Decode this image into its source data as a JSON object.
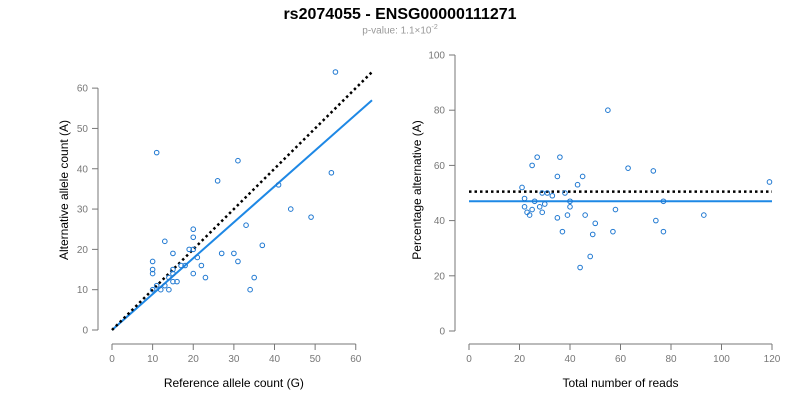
{
  "title": "rs2074055 - ENSG00000111271",
  "subtitle": {
    "prefix": "p-value: 1.1×10",
    "exponent": "-2"
  },
  "colors": {
    "points": "#1f78d1",
    "fit": "#1e88e5",
    "reference": "#000000",
    "axis": "#777777"
  },
  "chart_data": [
    {
      "type": "scatter",
      "xlabel": "Reference allele count (G)",
      "ylabel": "Alternative allele count (A)",
      "xlim": [
        0,
        64
      ],
      "ylim": [
        0,
        64
      ],
      "xticks": [
        0,
        10,
        20,
        30,
        40,
        50,
        60
      ],
      "yticks": [
        0,
        10,
        20,
        30,
        40,
        50,
        60
      ],
      "points": [
        [
          11,
          44
        ],
        [
          31,
          42
        ],
        [
          55,
          64
        ],
        [
          26,
          37
        ],
        [
          41,
          36
        ],
        [
          54,
          39
        ],
        [
          44,
          30
        ],
        [
          49,
          28
        ],
        [
          33,
          26
        ],
        [
          20,
          25
        ],
        [
          20,
          23
        ],
        [
          10,
          17
        ],
        [
          13,
          22
        ],
        [
          10,
          15
        ],
        [
          10,
          14
        ],
        [
          15,
          19
        ],
        [
          19,
          20
        ],
        [
          20,
          20
        ],
        [
          21,
          18
        ],
        [
          17,
          16
        ],
        [
          22,
          16
        ],
        [
          15,
          15
        ],
        [
          15,
          14
        ],
        [
          20,
          14
        ],
        [
          23,
          13
        ],
        [
          27,
          19
        ],
        [
          30,
          19
        ],
        [
          31,
          17
        ],
        [
          37,
          21
        ],
        [
          35,
          13
        ],
        [
          34,
          10
        ],
        [
          16,
          12
        ],
        [
          12,
          10
        ],
        [
          14,
          10
        ],
        [
          13,
          11
        ],
        [
          10,
          10
        ],
        [
          11,
          11
        ],
        [
          15,
          12
        ],
        [
          14,
          13
        ],
        [
          18,
          16
        ]
      ],
      "lines": [
        {
          "role": "fit",
          "from": [
            0,
            0
          ],
          "to": [
            64,
            57
          ]
        },
        {
          "role": "reference",
          "from": [
            0,
            0
          ],
          "to": [
            64,
            64
          ]
        }
      ]
    },
    {
      "type": "scatter",
      "xlabel": "Total number of reads",
      "ylabel": "Percentage alternative (A)",
      "xlim": [
        0,
        120
      ],
      "ylim": [
        0,
        100
      ],
      "xticks": [
        0,
        20,
        40,
        60,
        80,
        100,
        120
      ],
      "yticks": [
        0,
        20,
        40,
        60,
        80,
        100
      ],
      "points": [
        [
          55,
          80
        ],
        [
          27,
          63
        ],
        [
          36,
          63
        ],
        [
          25,
          60
        ],
        [
          63,
          59
        ],
        [
          73,
          58
        ],
        [
          35,
          56
        ],
        [
          45,
          56
        ],
        [
          43,
          53
        ],
        [
          21,
          52
        ],
        [
          119,
          54
        ],
        [
          38,
          50
        ],
        [
          29,
          50
        ],
        [
          31,
          50
        ],
        [
          22,
          48
        ],
        [
          26,
          47
        ],
        [
          40,
          47
        ],
        [
          77,
          47
        ],
        [
          28,
          45
        ],
        [
          22,
          45
        ],
        [
          23,
          43
        ],
        [
          24,
          42
        ],
        [
          29,
          43
        ],
        [
          35,
          41
        ],
        [
          39,
          42
        ],
        [
          46,
          42
        ],
        [
          93,
          42
        ],
        [
          74,
          40
        ],
        [
          50,
          39
        ],
        [
          58,
          44
        ],
        [
          37,
          36
        ],
        [
          49,
          35
        ],
        [
          57,
          36
        ],
        [
          77,
          36
        ],
        [
          48,
          27
        ],
        [
          44,
          23
        ],
        [
          33,
          49
        ],
        [
          40,
          45
        ],
        [
          30,
          46
        ],
        [
          25,
          44
        ]
      ],
      "lines": [
        {
          "role": "fit",
          "from": [
            0,
            47
          ],
          "to": [
            120,
            47
          ]
        },
        {
          "role": "reference",
          "from": [
            0,
            50.5
          ],
          "to": [
            120,
            50.5
          ]
        }
      ]
    }
  ]
}
